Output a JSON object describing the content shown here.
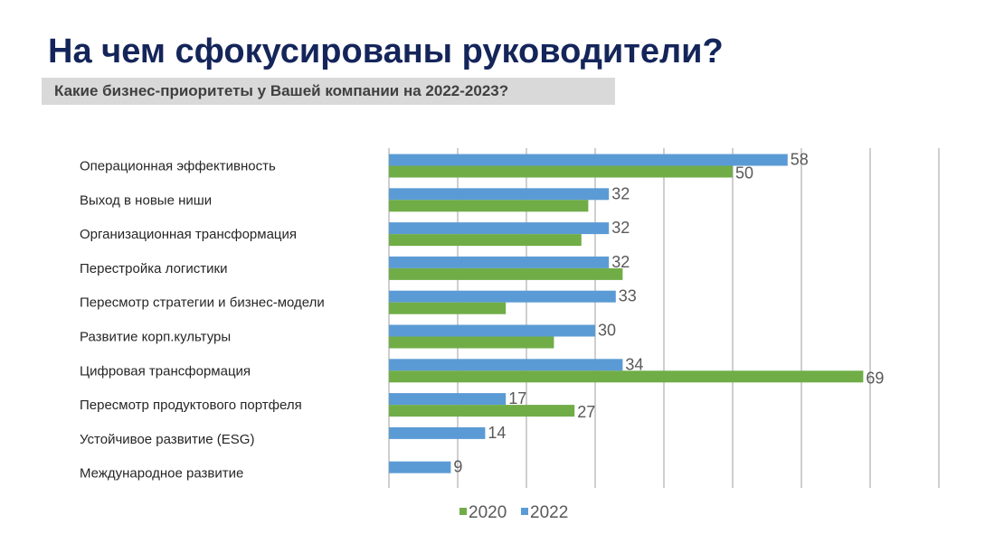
{
  "header": {
    "title": "На чем сфокусированы руководители?",
    "subtitle": "Какие бизнес-приоритеты у Вашей компании на 2022-2023?"
  },
  "colors": {
    "series_2020": "#70ad47",
    "series_2022": "#5b9bd5",
    "gridline": "#bfbfbf"
  },
  "chart_data": {
    "type": "bar",
    "orientation": "horizontal",
    "categories": [
      "Операционная эффективность",
      "Выход в новые ниши",
      "Организационная трансформация",
      "Перестройка логистики",
      "Пересмотр стратегии и бизнес-модели",
      "Развитие корп.культуры",
      "Цифровая трансформация",
      "Пересмотр продуктового портфеля",
      "Устойчивое развитие (ESG)",
      "Международное развитие"
    ],
    "series": [
      {
        "name": "2022",
        "values": [
          58,
          32,
          32,
          32,
          33,
          30,
          34,
          17,
          14,
          9
        ],
        "labels": [
          "58",
          "32",
          "32",
          "32",
          "33",
          "30",
          "34",
          "17",
          "14",
          "9"
        ]
      },
      {
        "name": "2020",
        "values": [
          50,
          29,
          28,
          34,
          17,
          24,
          69,
          27,
          null,
          null
        ],
        "labels": [
          "50",
          "",
          "",
          "",
          "",
          "",
          "69",
          "27",
          "",
          ""
        ]
      }
    ],
    "xlim": [
      0,
      80
    ],
    "grid": true,
    "legend": [
      "2020",
      "2022"
    ],
    "legend_position": "bottom"
  }
}
